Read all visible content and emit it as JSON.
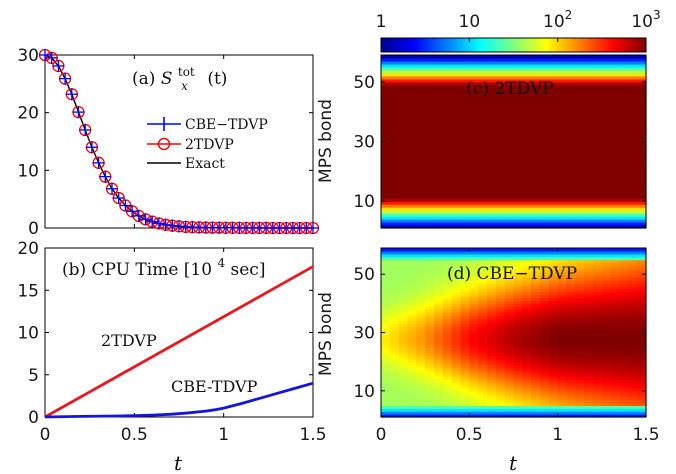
{
  "chart_data": [
    {
      "panel": "a",
      "type": "line",
      "annotation_prefix": "(a)",
      "annotation_symbol": "S",
      "annotation_sup": "tot",
      "annotation_sub": "x",
      "annotation_arg": "(t)",
      "xlim": [
        0,
        1.5
      ],
      "ylim": [
        0,
        30
      ],
      "xticks": [
        "0",
        "0.5",
        "1",
        "1.5"
      ],
      "yticks": [
        "0",
        "10",
        "20",
        "30"
      ],
      "legend": [
        "CBE−TDVP",
        "2TDVP",
        "Exact"
      ],
      "legend_placement": "right",
      "colors": {
        "cbe": "#0000ff",
        "two": "#ff0000",
        "exact": "#000000"
      },
      "x": [
        0,
        0.0375,
        0.075,
        0.1125,
        0.15,
        0.1875,
        0.225,
        0.2625,
        0.3,
        0.3375,
        0.375,
        0.4125,
        0.45,
        0.4875,
        0.525,
        0.5625,
        0.6,
        0.6375,
        0.675,
        0.7125,
        0.75,
        0.7875,
        0.825,
        0.8625,
        0.9,
        0.9375,
        0.975,
        1.0125,
        1.05,
        1.0875,
        1.125,
        1.1625,
        1.2,
        1.2375,
        1.275,
        1.3125,
        1.35,
        1.3875,
        1.425,
        1.4625,
        1.5
      ],
      "series": [
        {
          "name": "CBE−TDVP",
          "values": [
            30,
            29.5,
            28.1,
            25.9,
            23.2,
            20.1,
            17.0,
            14.0,
            11.3,
            8.9,
            6.8,
            5.2,
            3.9,
            2.9,
            2.1,
            1.5,
            1.1,
            0.8,
            0.55,
            0.4,
            0.3,
            0.2,
            0.15,
            0.1,
            0.08,
            0.06,
            0.05,
            0.04,
            0.03,
            0.02,
            0.02,
            0.01,
            0.01,
            0.01,
            0,
            0,
            0,
            0,
            0,
            0,
            0
          ]
        },
        {
          "name": "2TDVP",
          "values": [
            30,
            29.5,
            28.1,
            25.9,
            23.2,
            20.1,
            17.0,
            14.0,
            11.3,
            8.9,
            6.8,
            5.2,
            3.9,
            2.9,
            2.1,
            1.5,
            1.1,
            0.8,
            0.55,
            0.4,
            0.3,
            0.2,
            0.15,
            0.1,
            0.08,
            0.06,
            0.05,
            0.04,
            0.03,
            0.02,
            0.02,
            0.01,
            0.01,
            0.01,
            0,
            0,
            0,
            0,
            0,
            0,
            0
          ]
        },
        {
          "name": "Exact",
          "values": [
            30,
            29.5,
            28.1,
            25.9,
            23.2,
            20.1,
            17.0,
            14.0,
            11.3,
            8.9,
            6.8,
            5.2,
            3.9,
            2.9,
            2.1,
            1.5,
            1.1,
            0.8,
            0.55,
            0.4,
            0.3,
            0.2,
            0.15,
            0.1,
            0.08,
            0.06,
            0.05,
            0.04,
            0.03,
            0.02,
            0.02,
            0.01,
            0.01,
            0.01,
            0,
            0,
            0,
            0,
            0,
            0,
            0
          ]
        }
      ]
    },
    {
      "panel": "b",
      "type": "line",
      "annotation_prefix": "(b) CPU Time [10",
      "annotation_sup": "4",
      "annotation_suffix": " sec]",
      "xlabel": "t",
      "xlim": [
        0,
        1.5
      ],
      "ylim": [
        0,
        20
      ],
      "xticks": [
        "0",
        "0.5",
        "1",
        "1.5"
      ],
      "yticks": [
        "0",
        "5",
        "10",
        "15",
        "20"
      ],
      "colors": {
        "two": "#e8191c",
        "cbe": "#1414e0"
      },
      "series": [
        {
          "name": "2TDVP",
          "label": "2TDVP",
          "x": [
            0,
            1.5
          ],
          "values": [
            0,
            17.8
          ]
        },
        {
          "name": "CBE-TDVP",
          "label": "CBE-TDVP",
          "x": [
            0,
            0.2,
            0.4,
            0.5,
            0.6,
            0.7,
            0.8,
            0.9,
            0.95,
            1.0,
            1.1,
            1.2,
            1.3,
            1.4,
            1.5
          ],
          "values": [
            0,
            0.07,
            0.12,
            0.16,
            0.22,
            0.32,
            0.48,
            0.7,
            0.85,
            1.05,
            1.6,
            2.2,
            2.8,
            3.4,
            4.0
          ]
        }
      ]
    },
    {
      "panel": "c",
      "type": "heatmap",
      "annotation": "(c) 2TDVP",
      "ylabel": "MPS bond",
      "xlim": [
        0,
        1.5
      ],
      "ylim": [
        1,
        59
      ],
      "yticks": [
        "10",
        "30",
        "50"
      ],
      "color_scale": "log",
      "color_range": [
        1,
        1000
      ],
      "description_of_values": "bond dimension 1000 for bonds ~10-50 at all t, decreasing to 1 at chain edges",
      "edge_profile_bonds": [
        1,
        2,
        3,
        4,
        5,
        6,
        7,
        8,
        9,
        10,
        11
      ],
      "edge_profile_values": [
        1,
        2,
        4,
        8,
        16,
        32,
        64,
        128,
        256,
        512,
        1000
      ]
    },
    {
      "panel": "d",
      "type": "heatmap",
      "annotation": "(d) CBE−TDVP",
      "ylabel": "MPS bond",
      "xlabel": "t",
      "xlim": [
        0,
        1.5
      ],
      "ylim": [
        1,
        59
      ],
      "xticks": [
        "0",
        "0.5",
        "1",
        "1.5"
      ],
      "yticks": [
        "10",
        "30",
        "50"
      ],
      "color_scale": "log",
      "color_range": [
        1,
        1000
      ],
      "center_bond_log10_vs_t": {
        "t": [
          0,
          0.25,
          0.5,
          0.75,
          1.0,
          1.25,
          1.5
        ],
        "log10D": [
          1.9,
          2.2,
          2.6,
          2.85,
          3.0,
          3.0,
          3.0
        ]
      },
      "edge_bond_log10": 1.6
    }
  ],
  "colorbar": {
    "scale": "log",
    "range": [
      1,
      1000
    ],
    "colormap": "jet",
    "ticks": [
      {
        "base": "1",
        "exp": ""
      },
      {
        "base": "10",
        "exp": ""
      },
      {
        "base": "10",
        "exp": "2"
      },
      {
        "base": "10",
        "exp": "3"
      }
    ]
  }
}
